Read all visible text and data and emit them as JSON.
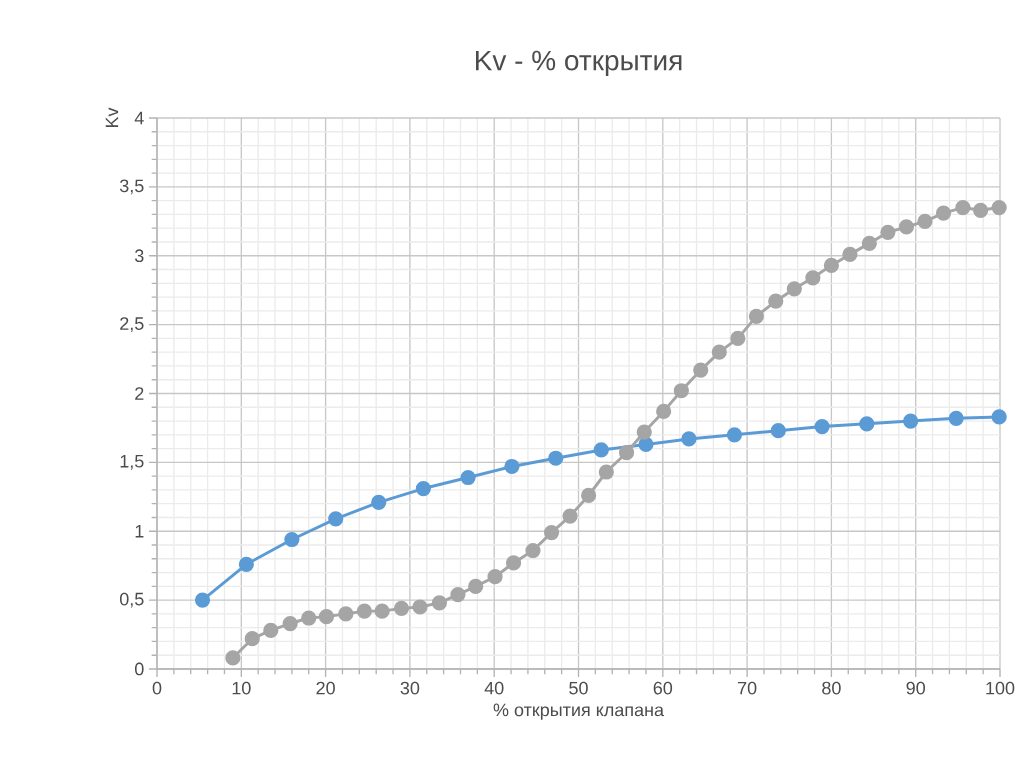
{
  "chart_data": {
    "type": "line",
    "title": "Kv - % открытия",
    "xlabel": "% открытия клапана",
    "ylabel": "Kv",
    "xlim": [
      0,
      100
    ],
    "xticks": [
      0,
      10,
      20,
      30,
      40,
      50,
      60,
      70,
      80,
      90,
      100
    ],
    "ylim": [
      0,
      4
    ],
    "yticks": [
      0,
      {
        "value": 0.5,
        "label": "0,5"
      },
      1,
      {
        "value": 1.5,
        "label": "1,5"
      },
      2,
      {
        "value": 2.5,
        "label": "2,5"
      },
      3,
      {
        "value": 3.5,
        "label": "3,5"
      },
      4
    ],
    "grid": true,
    "legend": false,
    "marker": "circle",
    "line_style": "solid",
    "series": [
      {
        "color": "#5b9bd5",
        "x": [
          5.4,
          10.6,
          16.0,
          21.2,
          26.3,
          31.6,
          36.9,
          42.1,
          47.3,
          52.7,
          58.0,
          63.1,
          68.5,
          73.7,
          78.9,
          84.2,
          89.4,
          94.8,
          99.9
        ],
        "values": [
          0.5,
          0.76,
          0.94,
          1.09,
          1.21,
          1.31,
          1.39,
          1.47,
          1.53,
          1.59,
          1.63,
          1.67,
          1.7,
          1.73,
          1.76,
          1.78,
          1.8,
          1.82,
          1.83
        ]
      },
      {
        "color": "#a5a5a5",
        "x": [
          9.0,
          11.3,
          13.5,
          15.8,
          18.0,
          20.1,
          22.4,
          24.6,
          26.7,
          29.0,
          31.2,
          33.5,
          35.7,
          37.8,
          40.1,
          42.3,
          44.6,
          46.8,
          49.0,
          51.2,
          53.3,
          55.7,
          57.8,
          60.1,
          62.2,
          64.5,
          66.7,
          68.9,
          71.1,
          73.4,
          75.6,
          77.8,
          80.0,
          82.2,
          84.5,
          86.7,
          88.9,
          91.1,
          93.3,
          95.6,
          97.7,
          99.9
        ],
        "values": [
          0.08,
          0.22,
          0.28,
          0.33,
          0.37,
          0.38,
          0.4,
          0.42,
          0.42,
          0.44,
          0.45,
          0.48,
          0.54,
          0.6,
          0.67,
          0.77,
          0.86,
          0.99,
          1.11,
          1.26,
          1.43,
          1.57,
          1.72,
          1.87,
          2.02,
          2.17,
          2.3,
          2.4,
          2.56,
          2.67,
          2.76,
          2.84,
          2.93,
          3.01,
          3.09,
          3.17,
          3.21,
          3.25,
          3.31,
          3.35,
          3.33,
          3.35
        ]
      }
    ]
  }
}
